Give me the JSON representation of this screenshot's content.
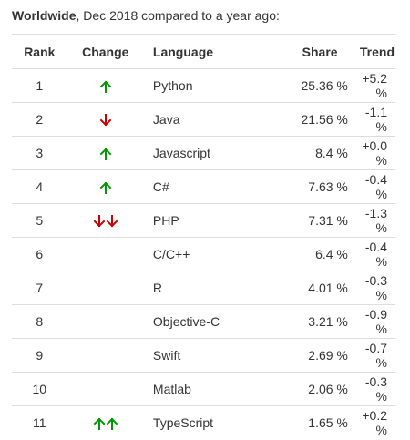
{
  "caption": {
    "bold": "Worldwide",
    "rest": ", Dec 2018 compared to a year ago:"
  },
  "table": {
    "headers": [
      "Rank",
      "Change",
      "Language",
      "Share",
      "Trend"
    ],
    "rows": [
      {
        "rank": "1",
        "change": [
          "up"
        ],
        "language": "Python",
        "share": "25.36 %",
        "trend": "+5.2 %"
      },
      {
        "rank": "2",
        "change": [
          "down"
        ],
        "language": "Java",
        "share": "21.56 %",
        "trend": "-1.1 %"
      },
      {
        "rank": "3",
        "change": [
          "up"
        ],
        "language": "Javascript",
        "share": "8.4 %",
        "trend": "+0.0 %"
      },
      {
        "rank": "4",
        "change": [
          "up"
        ],
        "language": "C#",
        "share": "7.63 %",
        "trend": "-0.4 %"
      },
      {
        "rank": "5",
        "change": [
          "down",
          "down"
        ],
        "language": "PHP",
        "share": "7.31 %",
        "trend": "-1.3 %"
      },
      {
        "rank": "6",
        "change": [],
        "language": "C/C++",
        "share": "6.4 %",
        "trend": "-0.4 %"
      },
      {
        "rank": "7",
        "change": [],
        "language": "R",
        "share": "4.01 %",
        "trend": "-0.3 %"
      },
      {
        "rank": "8",
        "change": [],
        "language": "Objective-C",
        "share": "3.21 %",
        "trend": "-0.9 %"
      },
      {
        "rank": "9",
        "change": [],
        "language": "Swift",
        "share": "2.69 %",
        "trend": "-0.7 %"
      },
      {
        "rank": "10",
        "change": [],
        "language": "Matlab",
        "share": "2.06 %",
        "trend": "-0.3 %"
      },
      {
        "rank": "11",
        "change": [
          "up",
          "up"
        ],
        "language": "TypeScript",
        "share": "1.65 %",
        "trend": "+0.2 %"
      }
    ]
  },
  "colors": {
    "up_arrow": "#009900",
    "down_arrow": "#cc0000",
    "text": "#333333",
    "border": "#dddddd"
  },
  "icons": {
    "up": "arrow-up-icon",
    "down": "arrow-down-icon"
  }
}
